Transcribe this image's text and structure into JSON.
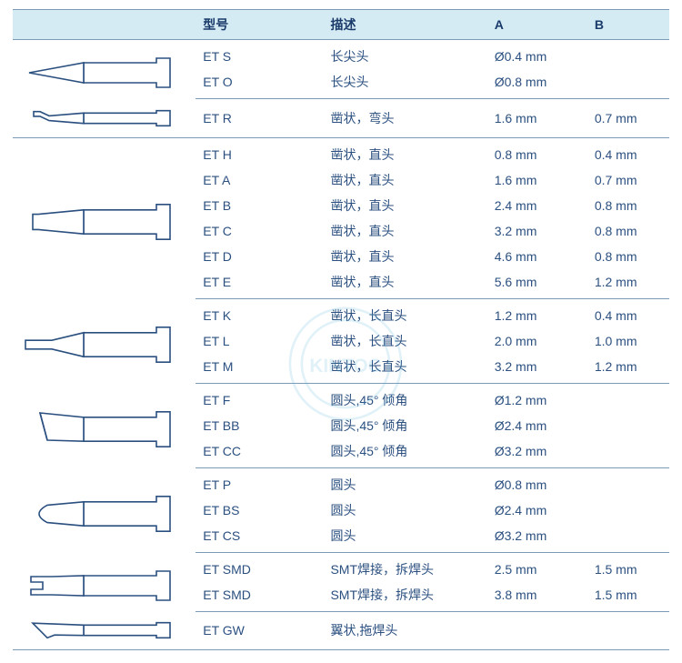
{
  "headers": {
    "model": "型号",
    "desc": "描述",
    "a": "A",
    "b": "B"
  },
  "colors": {
    "header_bg": "#d4ebf4",
    "rule": "#7a9ab5",
    "text_blue": "#2b5080",
    "head_text": "#1a3a6a",
    "icon_stroke": "#2b5080",
    "icon_fill": "#ffffff"
  },
  "groups": [
    {
      "icon": "conical",
      "rows": [
        {
          "model": "ET S",
          "desc": "长尖头",
          "a": "Ø0.4 mm",
          "b": ""
        },
        {
          "model": "ET O",
          "desc": "长尖头",
          "a": "Ø0.8 mm",
          "b": ""
        }
      ]
    },
    {
      "icon": "chisel-bent",
      "rows": [
        {
          "model": "ET R",
          "desc": "凿状，弯头",
          "a": "1.6 mm",
          "b": "0.7 mm"
        }
      ]
    },
    {
      "icon": "chisel-straight",
      "rows": [
        {
          "model": "ET H",
          "desc": "凿状，直头",
          "a": "0.8 mm",
          "b": "0.4 mm"
        },
        {
          "model": "ET A",
          "desc": "凿状，直头",
          "a": "1.6 mm",
          "b": "0.7 mm"
        },
        {
          "model": "ET B",
          "desc": "凿状，直头",
          "a": "2.4 mm",
          "b": "0.8 mm"
        },
        {
          "model": "ET C",
          "desc": "凿状，直头",
          "a": "3.2 mm",
          "b": "0.8 mm"
        },
        {
          "model": "ET D",
          "desc": "凿状，直头",
          "a": "4.6 mm",
          "b": "0.8 mm"
        },
        {
          "model": "ET E",
          "desc": "凿状，直头",
          "a": "5.6 mm",
          "b": "1.2 mm"
        }
      ]
    },
    {
      "icon": "chisel-long",
      "rows": [
        {
          "model": "ET K",
          "desc": "凿状，长直头",
          "a": "1.2 mm",
          "b": "0.4 mm"
        },
        {
          "model": "ET L",
          "desc": "凿状，长直头",
          "a": "2.0 mm",
          "b": "1.0 mm"
        },
        {
          "model": "ET M",
          "desc": "凿状，长直头",
          "a": "3.2 mm",
          "b": "1.2 mm"
        }
      ]
    },
    {
      "icon": "bevel",
      "rows": [
        {
          "model": "ET F",
          "desc": "圆头,45° 倾角",
          "a": "Ø1.2 mm",
          "b": ""
        },
        {
          "model": "ET BB",
          "desc": "圆头,45° 倾角",
          "a": "Ø2.4 mm",
          "b": ""
        },
        {
          "model": "ET CC",
          "desc": "圆头,45° 倾角",
          "a": "Ø3.2 mm",
          "b": ""
        }
      ]
    },
    {
      "icon": "round",
      "rows": [
        {
          "model": "ET P",
          "desc": "圆头",
          "a": "Ø0.8 mm",
          "b": ""
        },
        {
          "model": "ET BS",
          "desc": "圆头",
          "a": "Ø2.4 mm",
          "b": ""
        },
        {
          "model": "ET CS",
          "desc": "圆头",
          "a": "Ø3.2 mm",
          "b": ""
        }
      ]
    },
    {
      "icon": "smd",
      "rows": [
        {
          "model": "ET SMD",
          "desc": "SMT焊接，拆焊头",
          "a": "2.5 mm",
          "b": "1.5 mm"
        },
        {
          "model": "ET SMD",
          "desc": "SMT焊接，拆焊头",
          "a": "3.8 mm",
          "b": "1.5 mm"
        }
      ]
    },
    {
      "icon": "gullwing",
      "rows": [
        {
          "model": "ET GW",
          "desc": "翼状,拖焊头",
          "a": "",
          "b": ""
        }
      ]
    }
  ]
}
